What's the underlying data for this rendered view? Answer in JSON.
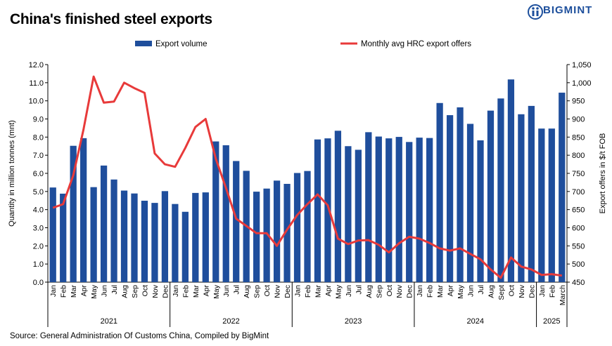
{
  "title": "China's finished steel exports",
  "brand": "BIGMINT",
  "source": "Source: General Administration Of Customs China, Compiled by BigMint",
  "colors": {
    "bar": "#1f4e9c",
    "line": "#e83a3a",
    "logo": "#1d4f9c"
  },
  "chart_data": {
    "type": "bar+line",
    "categories": [
      "Jan",
      "Feb",
      "Mar",
      "Apr",
      "May",
      "Jun",
      "Jul",
      "Aug",
      "Sep",
      "Oct",
      "Nov",
      "Dec",
      "Jan",
      "Feb",
      "Mar",
      "Apr",
      "May",
      "Jun",
      "Jul",
      "Aug",
      "Sep",
      "Oct",
      "Nov",
      "Dec",
      "Jan",
      "Feb",
      "Mar",
      "Apr",
      "May",
      "Jun",
      "Jul",
      "Aug",
      "Sep",
      "Oct",
      "Nov",
      "Dec",
      "Jan",
      "Feb",
      "Mar",
      "Apr",
      "May",
      "Jun",
      "Jul",
      "Aug",
      "Sept",
      "Oct",
      "Nov",
      "Dec",
      "Jan",
      "Feb",
      "March"
    ],
    "years": [
      {
        "label": "2021",
        "count": 12
      },
      {
        "label": "2022",
        "count": 12
      },
      {
        "label": "2023",
        "count": 12
      },
      {
        "label": "2024",
        "count": 12
      },
      {
        "label": "2025",
        "count": 3
      }
    ],
    "series": [
      {
        "name": "Export volume",
        "axis": "left",
        "kind": "bar",
        "values": [
          5.22,
          4.88,
          7.52,
          7.94,
          5.24,
          6.43,
          5.66,
          5.05,
          4.89,
          4.49,
          4.37,
          5.02,
          4.31,
          3.88,
          4.92,
          4.95,
          7.76,
          7.55,
          6.68,
          6.14,
          4.99,
          5.16,
          5.6,
          5.42,
          6.02,
          6.13,
          7.87,
          7.93,
          8.35,
          7.5,
          7.3,
          8.27,
          8.03,
          7.93,
          8.01,
          7.73,
          7.97,
          7.95,
          9.88,
          9.21,
          9.64,
          8.73,
          7.82,
          9.46,
          10.13,
          11.18,
          9.26,
          9.72,
          8.47,
          8.47,
          10.45
        ]
      },
      {
        "name": "Monthly avg HRC export offers",
        "axis": "right",
        "kind": "line",
        "values": [
          655,
          665,
          745,
          870,
          1017,
          945,
          948,
          1000,
          985,
          972,
          805,
          775,
          768,
          820,
          878,
          900,
          790,
          710,
          625,
          605,
          585,
          585,
          550,
          595,
          635,
          665,
          692,
          662,
          570,
          555,
          565,
          566,
          553,
          532,
          557,
          575,
          570,
          558,
          543,
          537,
          543,
          528,
          513,
          485,
          462,
          518,
          493,
          485,
          470,
          472,
          468
        ]
      }
    ],
    "ylabel": "Quantity in million tonnes (mnt)",
    "ylabel_right": "Export offers in $/t FOB",
    "ylim": [
      0,
      12
    ],
    "yticks": [
      "0.0",
      "1.0",
      "2.0",
      "3.0",
      "4.0",
      "5.0",
      "6.0",
      "7.0",
      "8.0",
      "9.0",
      "10.0",
      "11.0",
      "12.0"
    ],
    "ylim_right": [
      450,
      1050
    ],
    "yticks_right": [
      "450",
      "500",
      "550",
      "600",
      "650",
      "700",
      "750",
      "800",
      "850",
      "900",
      "950",
      "1,000",
      "1,050"
    ],
    "legend_position": "top-center",
    "grid": false
  }
}
